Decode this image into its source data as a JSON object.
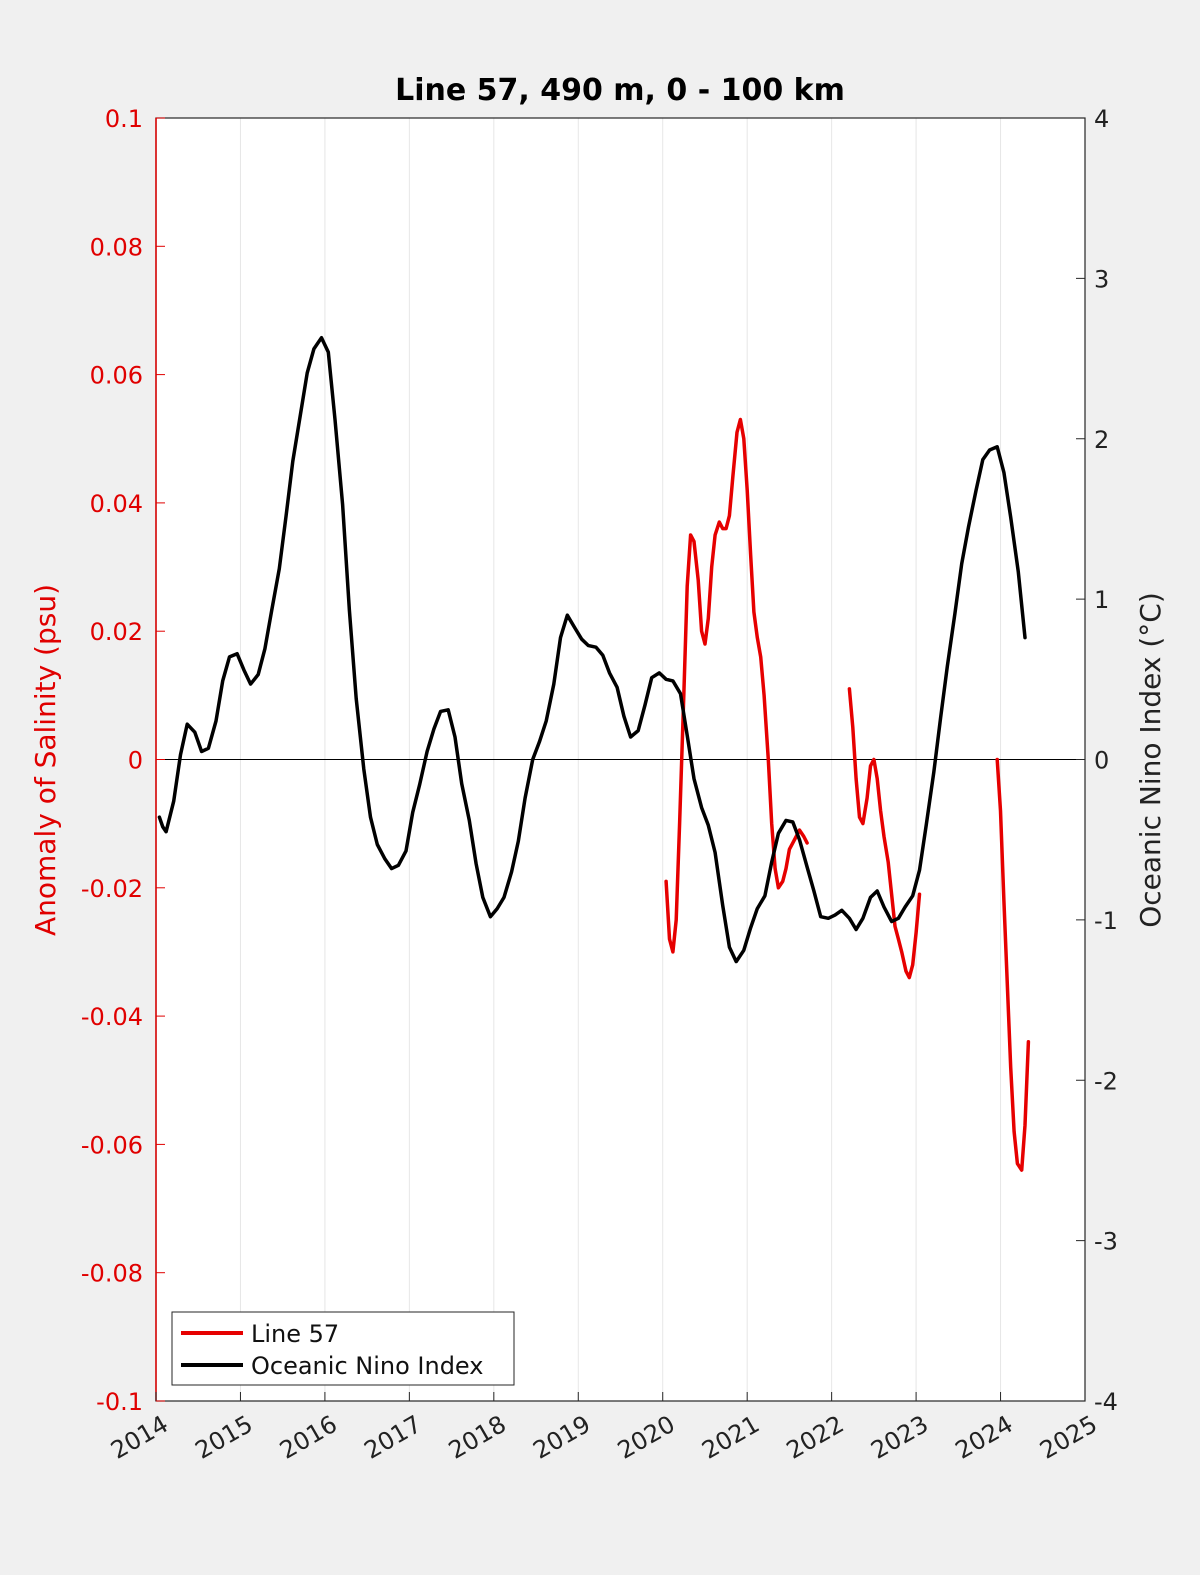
{
  "chart_data": {
    "type": "line",
    "title": "Line 57, 490 m, 0 - 100 km",
    "ylabel_left": "Anomaly of Salinity (psu)",
    "ylabel_right": "Oceanic Nino Index (°C)",
    "xlim": [
      2014,
      2025
    ],
    "ylim_left": [
      -0.1,
      0.1
    ],
    "ylim_right": [
      -4,
      4
    ],
    "x_ticks": [
      "2014",
      "2015",
      "2016",
      "2017",
      "2018",
      "2019",
      "2020",
      "2021",
      "2022",
      "2023",
      "2024",
      "2025"
    ],
    "y_left_ticks": [
      "0.1",
      "0.08",
      "0.06",
      "0.04",
      "0.02",
      "0",
      "-0.02",
      "-0.04",
      "-0.06",
      "-0.08",
      "-0.1"
    ],
    "y_right_ticks": [
      "4",
      "3",
      "2",
      "1",
      "0",
      "-1",
      "-2",
      "-3",
      "-4"
    ],
    "grid": "vertical",
    "zero_line": true,
    "legend_position": "bottom-left",
    "colors": {
      "line57": "#e60000",
      "oni": "#000000",
      "left_axis": "#e00000"
    },
    "series": [
      {
        "name": "Line 57",
        "axis": "left",
        "segments": [
          {
            "x": [
              2020.04,
              2020.08,
              2020.12,
              2020.16,
              2020.2,
              2020.25,
              2020.29,
              2020.33,
              2020.37,
              2020.42,
              2020.46,
              2020.5,
              2020.54,
              2020.58,
              2020.62,
              2020.67,
              2020.71,
              2020.75,
              2020.79,
              2020.83,
              2020.88,
              2020.92,
              2020.96,
              2021.0,
              2021.04,
              2021.08,
              2021.12,
              2021.16,
              2021.2,
              2021.25,
              2021.29,
              2021.33,
              2021.37,
              2021.42,
              2021.46,
              2021.5,
              2021.54,
              2021.58,
              2021.62,
              2021.67,
              2021.71
            ],
            "y": [
              -0.019,
              -0.028,
              -0.03,
              -0.025,
              -0.01,
              0.01,
              0.027,
              0.035,
              0.034,
              0.028,
              0.02,
              0.018,
              0.022,
              0.03,
              0.035,
              0.037,
              0.036,
              0.036,
              0.038,
              0.044,
              0.051,
              0.053,
              0.05,
              0.042,
              0.032,
              0.023,
              0.019,
              0.016,
              0.01,
              0.0,
              -0.01,
              -0.017,
              -0.02,
              -0.019,
              -0.017,
              -0.014,
              -0.013,
              -0.012,
              -0.011,
              -0.012,
              -0.013
            ]
          },
          {
            "x": [
              2022.21,
              2022.25,
              2022.29,
              2022.33,
              2022.37,
              2022.42,
              2022.46,
              2022.5,
              2022.54,
              2022.58,
              2022.62,
              2022.67,
              2022.71,
              2022.75,
              2022.79,
              2022.83,
              2022.88,
              2022.92,
              2022.96,
              2023.0,
              2023.04
            ],
            "y": [
              0.011,
              0.005,
              -0.003,
              -0.009,
              -0.01,
              -0.006,
              -0.001,
              0.0,
              -0.003,
              -0.008,
              -0.012,
              -0.016,
              -0.021,
              -0.026,
              -0.028,
              -0.03,
              -0.033,
              -0.034,
              -0.032,
              -0.027,
              -0.021
            ]
          },
          {
            "x": [
              2023.96,
              2024.0,
              2024.04,
              2024.08,
              2024.12,
              2024.16,
              2024.2,
              2024.25,
              2024.29,
              2024.33
            ],
            "y": [
              0.0,
              -0.008,
              -0.022,
              -0.035,
              -0.048,
              -0.058,
              -0.063,
              -0.064,
              -0.057,
              -0.044
            ]
          }
        ]
      },
      {
        "name": "Oceanic Nino Index",
        "axis": "right",
        "segments": [
          {
            "x": [
              2014.04,
              2014.08,
              2014.12,
              2014.21,
              2014.29,
              2014.37,
              2014.46,
              2014.54,
              2014.62,
              2014.71,
              2014.79,
              2014.87,
              2014.96,
              2015.04,
              2015.12,
              2015.21,
              2015.29,
              2015.37,
              2015.46,
              2015.54,
              2015.62,
              2015.71,
              2015.79,
              2015.87,
              2015.96,
              2016.04,
              2016.12,
              2016.21,
              2016.29,
              2016.37,
              2016.46,
              2016.54,
              2016.62,
              2016.71,
              2016.79,
              2016.87,
              2016.96,
              2017.04,
              2017.12,
              2017.21,
              2017.29,
              2017.37,
              2017.46,
              2017.54,
              2017.62,
              2017.71,
              2017.79,
              2017.87,
              2017.96,
              2018.04,
              2018.12,
              2018.21,
              2018.29,
              2018.37,
              2018.46,
              2018.54,
              2018.62,
              2018.71,
              2018.79,
              2018.87,
              2018.96,
              2019.04,
              2019.12,
              2019.21,
              2019.29,
              2019.37,
              2019.46,
              2019.54,
              2019.62,
              2019.71,
              2019.79,
              2019.87,
              2019.96,
              2020.04,
              2020.12,
              2020.21,
              2020.29,
              2020.37,
              2020.46,
              2020.54,
              2020.62,
              2020.71,
              2020.79,
              2020.87,
              2020.96,
              2021.04,
              2021.12,
              2021.21,
              2021.29,
              2021.37,
              2021.46,
              2021.54,
              2021.62,
              2021.71,
              2021.79,
              2021.87,
              2021.96,
              2022.04,
              2022.12,
              2022.21,
              2022.29,
              2022.37,
              2022.46,
              2022.54,
              2022.62,
              2022.71,
              2022.79,
              2022.87,
              2022.96,
              2023.04,
              2023.12,
              2023.21,
              2023.29,
              2023.37,
              2023.46,
              2023.54,
              2023.62,
              2023.71,
              2023.79,
              2023.87,
              2023.96,
              2024.04,
              2024.12,
              2024.21,
              2024.29
            ],
            "y": [
              -0.36,
              -0.42,
              -0.45,
              -0.26,
              0.03,
              0.22,
              0.17,
              0.05,
              0.07,
              0.24,
              0.49,
              0.64,
              0.66,
              0.56,
              0.47,
              0.53,
              0.69,
              0.93,
              1.19,
              1.52,
              1.86,
              2.15,
              2.41,
              2.56,
              2.63,
              2.54,
              2.12,
              1.59,
              0.93,
              0.38,
              -0.06,
              -0.36,
              -0.53,
              -0.62,
              -0.68,
              -0.66,
              -0.57,
              -0.33,
              -0.16,
              0.05,
              0.19,
              0.3,
              0.31,
              0.14,
              -0.15,
              -0.38,
              -0.65,
              -0.86,
              -0.98,
              -0.93,
              -0.86,
              -0.7,
              -0.51,
              -0.24,
              0.0,
              0.11,
              0.24,
              0.47,
              0.76,
              0.9,
              0.82,
              0.75,
              0.71,
              0.7,
              0.65,
              0.54,
              0.45,
              0.27,
              0.14,
              0.18,
              0.34,
              0.51,
              0.54,
              0.5,
              0.49,
              0.41,
              0.15,
              -0.12,
              -0.3,
              -0.41,
              -0.58,
              -0.91,
              -1.17,
              -1.26,
              -1.19,
              -1.05,
              -0.93,
              -0.85,
              -0.64,
              -0.46,
              -0.38,
              -0.39,
              -0.5,
              -0.67,
              -0.82,
              -0.98,
              -0.99,
              -0.97,
              -0.94,
              -0.99,
              -1.06,
              -0.99,
              -0.86,
              -0.82,
              -0.92,
              -1.01,
              -0.99,
              -0.92,
              -0.85,
              -0.69,
              -0.41,
              -0.08,
              0.26,
              0.58,
              0.91,
              1.22,
              1.45,
              1.68,
              1.87,
              1.93,
              1.95,
              1.79,
              1.51,
              1.17,
              0.76
            ]
          }
        ]
      }
    ],
    "legend": [
      "Line 57",
      "Oceanic Nino Index"
    ]
  }
}
